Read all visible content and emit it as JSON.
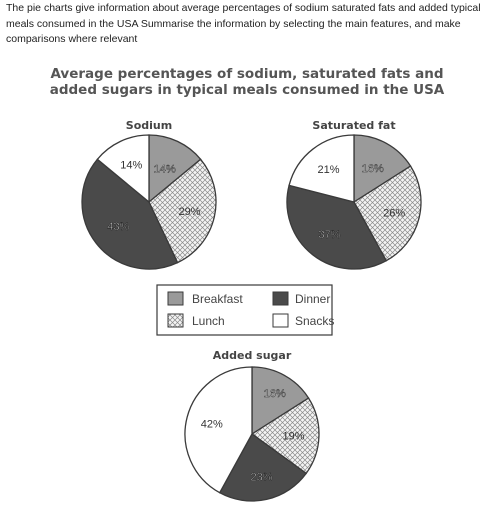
{
  "prompt": {
    "line1": "The pie charts give information about average percentages of sodium saturated fats and added typical",
    "line2": "meals consumed in the USA Summarise the information by selecting the main features, and make",
    "line3": "comparisons where relevant"
  },
  "figure": {
    "title_line1": "Average percentages of sodium, saturated fats and",
    "title_line2": "added sugars in typical meals consumed in the USA"
  },
  "colors": {
    "breakfast": "#9a9a9a",
    "lunch_hatch": "#c8c8c8",
    "dinner": "#4a4a4a",
    "snacks": "#ffffff",
    "stroke": "#3a3a3a"
  },
  "legend": {
    "breakfast": "Breakfast",
    "dinner": "Dinner",
    "lunch": "Lunch",
    "snacks": "Snacks"
  },
  "chart_data": [
    {
      "type": "pie",
      "title": "Sodium",
      "categories": [
        "Breakfast",
        "Lunch",
        "Dinner",
        "Snacks"
      ],
      "values": [
        14,
        29,
        43,
        14
      ],
      "labels": [
        "14%",
        "29%",
        "43%",
        "14%"
      ]
    },
    {
      "type": "pie",
      "title": "Saturated fat",
      "categories": [
        "Breakfast",
        "Lunch",
        "Dinner",
        "Snacks"
      ],
      "values": [
        16,
        26,
        37,
        21
      ],
      "labels": [
        "16%",
        "26%",
        "37%",
        "21%"
      ]
    },
    {
      "type": "pie",
      "title": "Added sugar",
      "categories": [
        "Breakfast",
        "Lunch",
        "Dinner",
        "Snacks"
      ],
      "values": [
        16,
        19,
        23,
        42
      ],
      "labels": [
        "16%",
        "19%",
        "23%",
        "42%"
      ]
    }
  ]
}
